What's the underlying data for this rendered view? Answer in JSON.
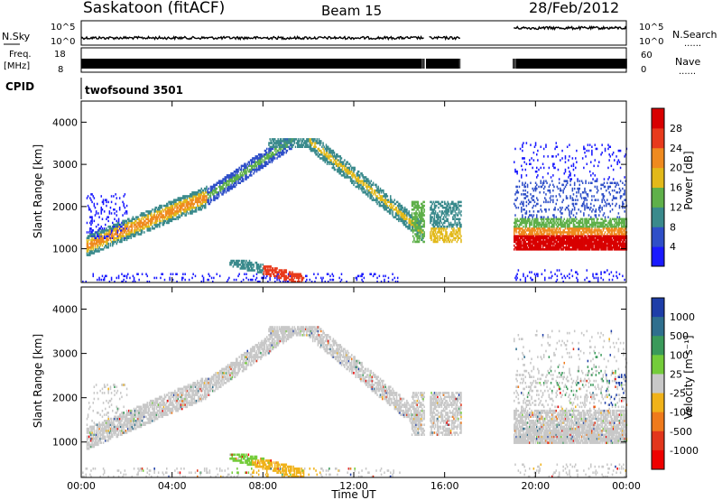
{
  "header": {
    "station": "Saskatoon (fitACF)",
    "beam": "Beam 15",
    "date": "28/Feb/2012"
  },
  "strips": {
    "nsky_label": "N.Sky",
    "nsearch_label": "N.Search",
    "nsky_ticks": [
      "10^5",
      "10^0"
    ],
    "nsearch_ticks": [
      "10^5",
      "10^0"
    ],
    "freq_label_1": "Freq.",
    "freq_label_2": "[MHz]",
    "freq_ticks": [
      "18",
      "8"
    ],
    "nave_label": "Nave",
    "nave_ticks": [
      "60",
      "0"
    ],
    "cpid_label": "CPID",
    "cpid_value": "twofsound 3501",
    "dotted": "......"
  },
  "chart_data": [
    {
      "type": "heatmap",
      "panel": "power",
      "xlabel": "Time UT",
      "ylabel": "Slant Range [km]",
      "xlim": [
        0,
        24
      ],
      "ylim": [
        200,
        4500
      ],
      "x_ticks": [
        "00:00",
        "04:00",
        "08:00",
        "12:00",
        "16:00",
        "20:00",
        "00:00"
      ],
      "y_ticks": [
        1000,
        2000,
        3000,
        4000
      ],
      "colorbar": {
        "label": "Power [dB]",
        "ticks": [
          "4",
          "8",
          "12",
          "16",
          "20",
          "24",
          "28"
        ],
        "colors": [
          "#1a1aff",
          "#2f4fc8",
          "#3a8a8c",
          "#5fb04a",
          "#e2b91a",
          "#ef8a1f",
          "#e83a1c",
          "#d80000"
        ]
      },
      "data_gaps_hours": [
        [
          15.1,
          15.3
        ],
        [
          16.7,
          19.0
        ]
      ],
      "features": [
        {
          "name": "ionospheric band morning",
          "t": [
            0.2,
            5.5
          ],
          "range_km": [
            900,
            2200
          ],
          "peak_db": 24
        },
        {
          "name": "arc to far range",
          "t": [
            5.5,
            9.3
          ],
          "range_km": [
            1500,
            3550
          ],
          "peak_db": 16
        },
        {
          "name": "descending arc",
          "t": [
            10.0,
            15.0
          ],
          "range_km": [
            1200,
            3550
          ],
          "peak_db": 20
        },
        {
          "name": "ground scatter near range",
          "t": [
            6.5,
            9.8
          ],
          "range_km": [
            200,
            700
          ],
          "peak_db": 28
        },
        {
          "name": "evening band",
          "t": [
            19.0,
            24.0
          ],
          "range_km": [
            900,
            1800
          ],
          "peak_db": 28
        }
      ]
    },
    {
      "type": "heatmap",
      "panel": "velocity",
      "xlabel": "Time UT",
      "ylabel": "Slant Range [km]",
      "xlim": [
        0,
        24
      ],
      "ylim": [
        200,
        4500
      ],
      "x_ticks": [
        "00:00",
        "04:00",
        "08:00",
        "12:00",
        "16:00",
        "20:00",
        "00:00"
      ],
      "y_ticks": [
        1000,
        2000,
        3000,
        4000
      ],
      "colorbar": {
        "label": "Velocity [m s⁻¹]",
        "ticks": [
          "1000",
          "500",
          "100",
          "25",
          "-25",
          "-100",
          "-500",
          "-1000"
        ],
        "colors": [
          "#1e3ea8",
          "#2f6f8e",
          "#3a9a5a",
          "#74cc3a",
          "#c8c8c8",
          "#f0b21a",
          "#ef7a1c",
          "#e2361c",
          "#ee0000"
        ]
      },
      "features": [
        {
          "name": "grey ground scatter band",
          "t": [
            0.0,
            16.7
          ],
          "range_km": [
            900,
            3550
          ],
          "velocity": 0
        },
        {
          "name": "green near-range patch",
          "t": [
            6.5,
            9.0
          ],
          "range_km": [
            300,
            900
          ],
          "velocity": 100
        },
        {
          "name": "orange near-range patch",
          "t": [
            7.5,
            10.5
          ],
          "range_km": [
            200,
            700
          ],
          "velocity": -100
        },
        {
          "name": "evening grey band",
          "t": [
            19.0,
            24.0
          ],
          "range_km": [
            900,
            1900
          ],
          "velocity": 0
        }
      ]
    }
  ]
}
